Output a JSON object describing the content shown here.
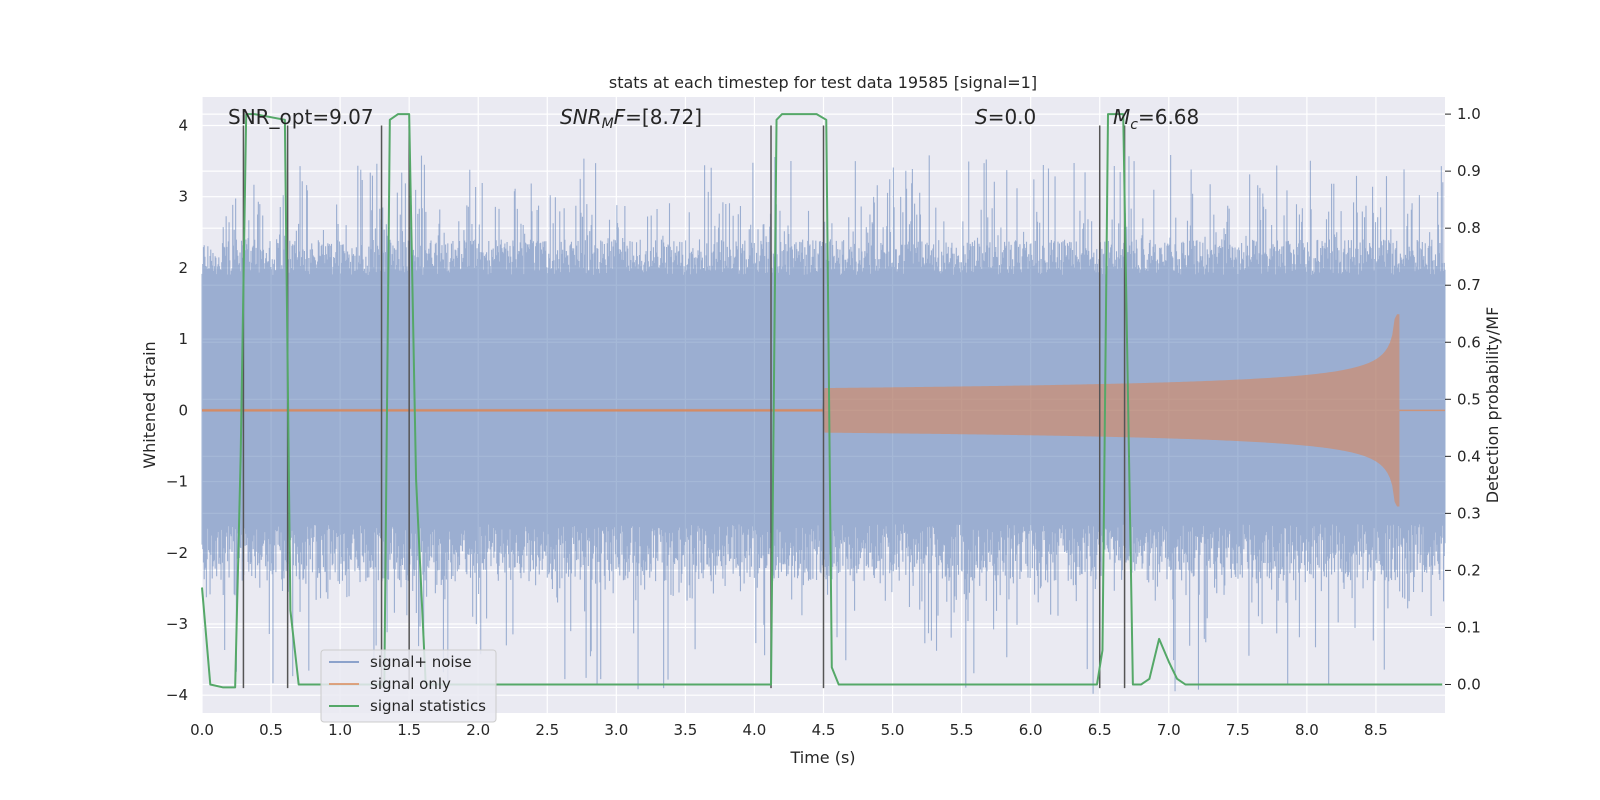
{
  "chart_data": {
    "type": "line",
    "title": "stats at each timestep for test data 19585 [signal=1]",
    "xlabel": "Time (s)",
    "ylabel": "Whitened strain",
    "y2label": "Detection probability/MF",
    "xlim": [
      0.0,
      9.0
    ],
    "ylim": [
      -4.25,
      4.4
    ],
    "y2lim": [
      -0.05,
      1.03
    ],
    "xticks": [
      0.0,
      0.5,
      1.0,
      1.5,
      2.0,
      2.5,
      3.0,
      3.5,
      4.0,
      4.5,
      5.0,
      5.5,
      6.0,
      6.5,
      7.0,
      7.5,
      8.0,
      8.5
    ],
    "xtick_labels": [
      "0.0",
      "0.5",
      "1.0",
      "1.5",
      "2.0",
      "2.5",
      "3.0",
      "3.5",
      "4.0",
      "4.5",
      "5.0",
      "5.5",
      "6.0",
      "6.5",
      "7.0",
      "7.5",
      "8.0",
      "8.5"
    ],
    "yticks": [
      -4,
      -3,
      -2,
      -1,
      0,
      1,
      2,
      3,
      4
    ],
    "ytick_labels": [
      "−4",
      "−3",
      "−2",
      "−1",
      "0",
      "1",
      "2",
      "3",
      "4"
    ],
    "y2ticks": [
      0.0,
      0.1,
      0.2,
      0.3,
      0.4,
      0.5,
      0.6,
      0.7,
      0.8,
      0.9,
      1.0
    ],
    "y2tick_labels": [
      "0.0",
      "0.1",
      "0.2",
      "0.3",
      "0.4",
      "0.5",
      "0.6",
      "0.7",
      "0.8",
      "0.9",
      "1.0"
    ],
    "grid": true,
    "legend_position": "lower-left",
    "annotations": {
      "snr_opt": "SNR_opt=9.07",
      "snr_mf_sym": "SNR",
      "snr_mf_sub": "M",
      "snr_mf_sym2": "F",
      "snr_mf_val": "=[8.72]",
      "s_sym": "S",
      "s_val": "=0.0",
      "mc_sym": "M",
      "mc_sub": "c",
      "mc_val": "=6.68"
    },
    "series": [
      {
        "name": "signal+ noise",
        "color": "#4c72b0",
        "axis": "left",
        "style": "noise",
        "band_typical": [
          -1.6,
          1.9
        ],
        "peak_range": [
          -4.0,
          3.6
        ]
      },
      {
        "name": "signal only",
        "color": "#dd8452",
        "axis": "left",
        "style": "chirp",
        "onset_time": 4.5,
        "merger_time": 8.65,
        "peak_amplitude": 1.35
      },
      {
        "name": "signal statistics",
        "color": "#55a868",
        "axis": "right",
        "x": [
          0.0,
          0.06,
          0.15,
          0.24,
          0.28,
          0.32,
          0.38,
          0.6,
          0.64,
          0.7,
          0.76,
          1.32,
          1.36,
          1.42,
          1.5,
          1.55,
          1.62,
          1.66,
          4.12,
          4.16,
          4.2,
          4.45,
          4.52,
          4.56,
          4.61,
          6.48,
          6.52,
          6.56,
          6.67,
          6.74,
          6.8,
          6.86,
          6.93,
          7.0,
          7.06,
          7.12,
          8.98
        ],
        "y": [
          0.17,
          0.0,
          -0.005,
          -0.005,
          0.4,
          1.0,
          1.0,
          0.99,
          0.13,
          0.0,
          0.0,
          0.0,
          0.99,
          1.0,
          1.0,
          0.36,
          0.0,
          0.0,
          0.0,
          0.99,
          1.0,
          1.0,
          0.99,
          0.03,
          0.0,
          0.0,
          0.06,
          1.0,
          1.0,
          0.0,
          0.0,
          0.01,
          0.08,
          0.04,
          0.01,
          0.0,
          0.0
        ]
      }
    ],
    "vlines": {
      "color": "#555555",
      "x": [
        0.3,
        0.62,
        1.3,
        1.5,
        4.12,
        4.5,
        6.5,
        6.68
      ]
    }
  }
}
